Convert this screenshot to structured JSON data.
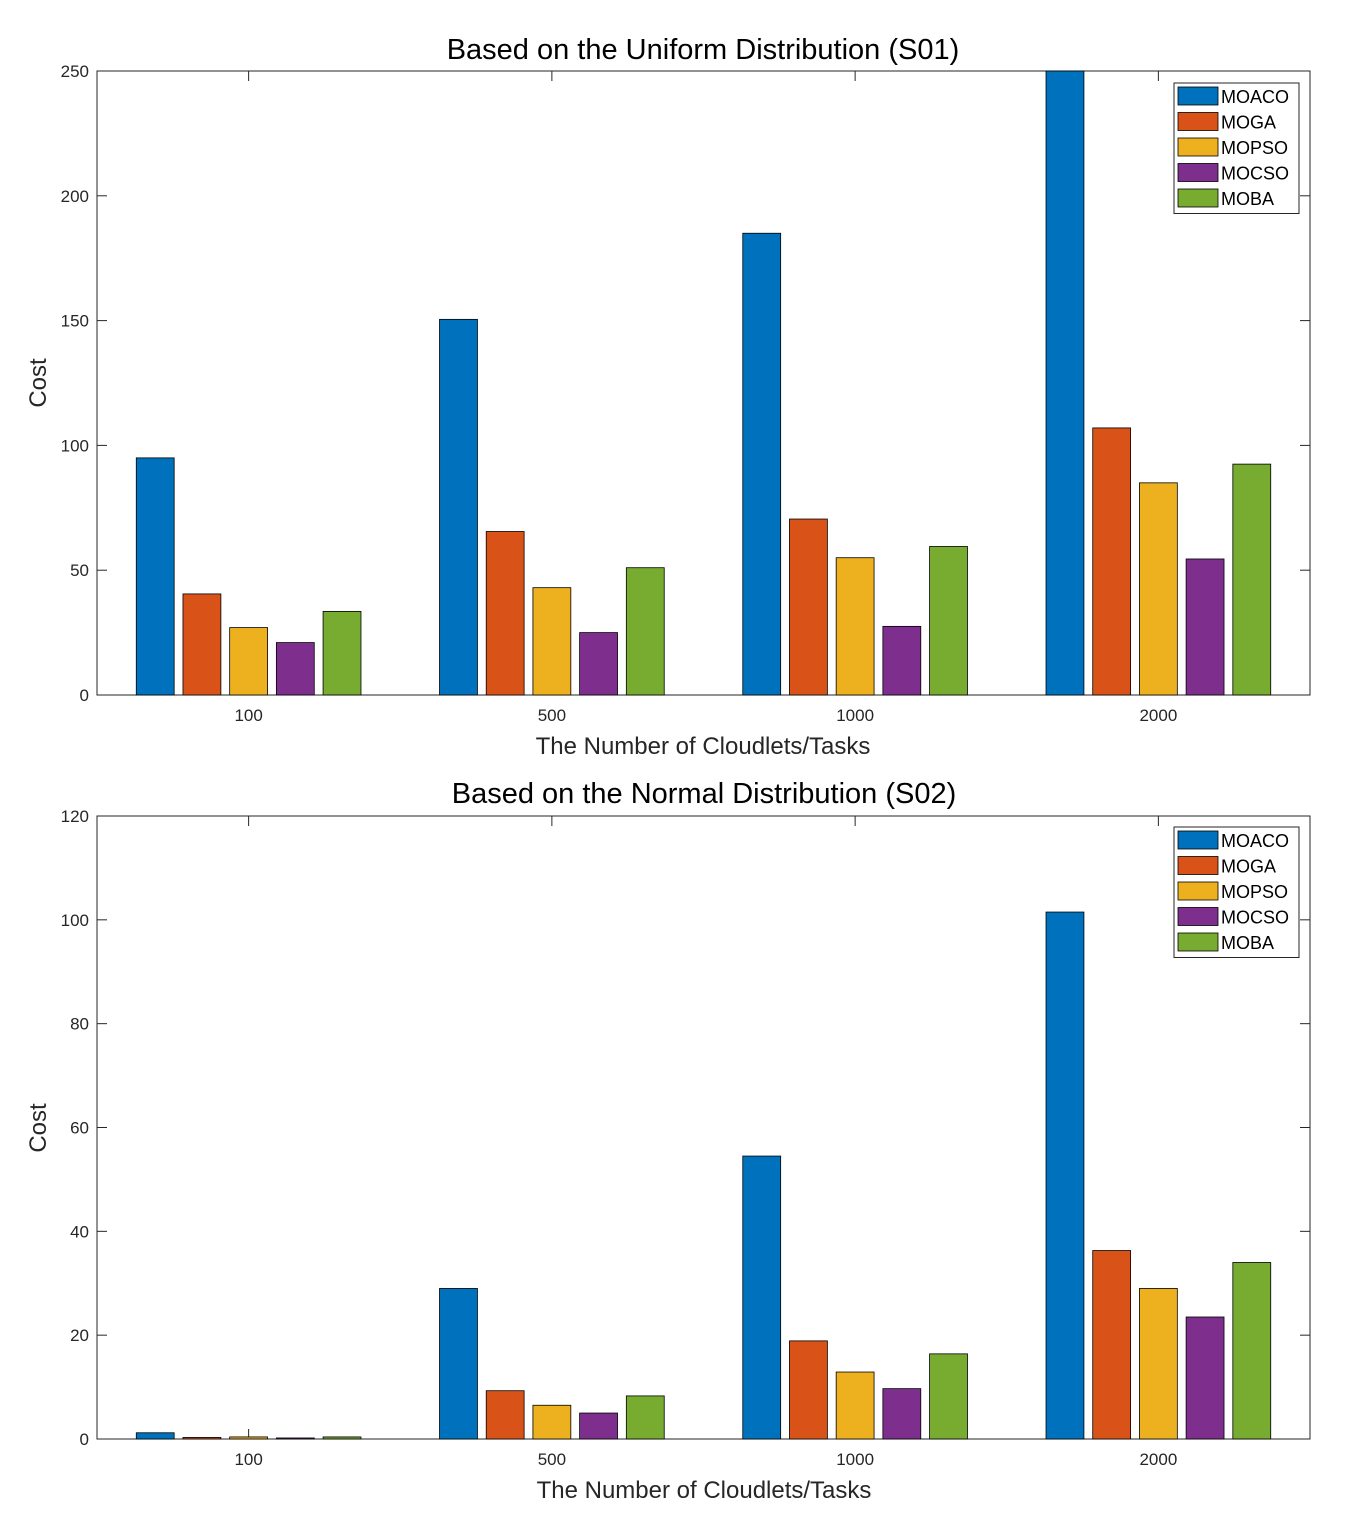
{
  "colors": {
    "MOACO": "#0072BD",
    "MOGA": "#D95319",
    "MOPSO": "#EDB120",
    "MOCSO": "#7E2F8E",
    "MOBA": "#77AC30"
  },
  "chart_data": [
    {
      "type": "bar",
      "title": "Based on the Uniform Distribution (S01)",
      "xlabel": "The Number of Cloudlets/Tasks",
      "ylabel": "Cost",
      "categories": [
        "100",
        "500",
        "1000",
        "2000"
      ],
      "ylim": [
        0,
        250
      ],
      "yticks": [
        "0",
        "50",
        "100",
        "150",
        "200",
        "250"
      ],
      "legend_position": "top-right",
      "series": [
        {
          "name": "MOACO",
          "values": [
            95,
            150.5,
            185,
            250
          ]
        },
        {
          "name": "MOGA",
          "values": [
            40.5,
            65.5,
            70.5,
            107
          ]
        },
        {
          "name": "MOPSO",
          "values": [
            27,
            43,
            55,
            85
          ]
        },
        {
          "name": "MOCSO",
          "values": [
            21,
            25,
            27.5,
            54.5
          ]
        },
        {
          "name": "MOBA",
          "values": [
            33.5,
            51,
            59.5,
            92.5
          ]
        }
      ]
    },
    {
      "type": "bar",
      "title": "Based on the Normal Distribution (S02)",
      "xlabel": "The Number of Cloudlets/Tasks",
      "ylabel": "Cost",
      "categories": [
        "100",
        "500",
        "1000",
        "2000"
      ],
      "ylim": [
        0,
        120
      ],
      "yticks": [
        "0",
        "20",
        "40",
        "60",
        "80",
        "100",
        "120"
      ],
      "legend_position": "top-right",
      "series": [
        {
          "name": "MOACO",
          "values": [
            1.2,
            29,
            54.5,
            101.5
          ]
        },
        {
          "name": "MOGA",
          "values": [
            0.3,
            9.3,
            18.9,
            36.3
          ]
        },
        {
          "name": "MOPSO",
          "values": [
            0.4,
            6.5,
            12.9,
            29
          ]
        },
        {
          "name": "MOCSO",
          "values": [
            0.2,
            5,
            9.7,
            23.5
          ]
        },
        {
          "name": "MOBA",
          "values": [
            0.4,
            8.3,
            16.4,
            34
          ]
        }
      ]
    }
  ]
}
